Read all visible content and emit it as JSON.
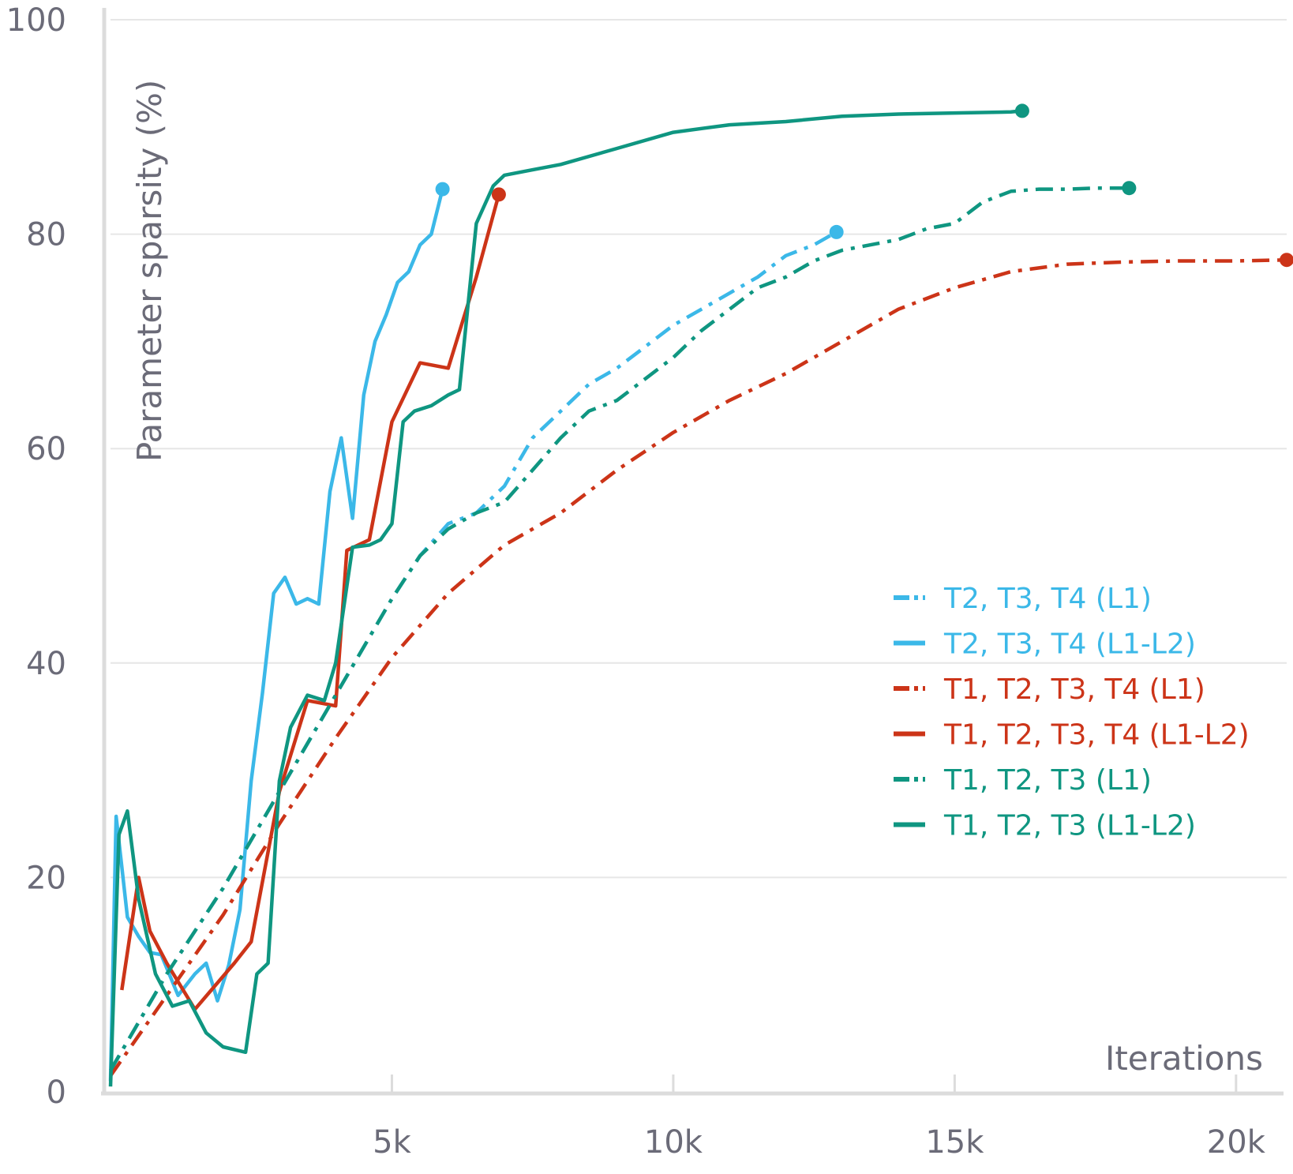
{
  "chart_data": {
    "type": "line",
    "title": "",
    "xlabel": "Iterations",
    "ylabel": "Parameter sparsity (%)",
    "xlim": [
      0,
      20900
    ],
    "ylim": [
      0,
      100
    ],
    "xticks": [
      {
        "value": 5000,
        "label": "5k"
      },
      {
        "value": 10000,
        "label": "10k"
      },
      {
        "value": 15000,
        "label": "15k"
      },
      {
        "value": 20000,
        "label": "20k"
      }
    ],
    "yticks": [
      {
        "value": 0,
        "label": "0"
      },
      {
        "value": 20,
        "label": "20"
      },
      {
        "value": 40,
        "label": "40"
      },
      {
        "value": 60,
        "label": "60"
      },
      {
        "value": 80,
        "label": "80"
      },
      {
        "value": 100,
        "label": "100"
      }
    ],
    "grid": true,
    "legend_position": "right-middle",
    "colors": {
      "blue": "#3bb8e8",
      "red": "#cc3418",
      "teal": "#0f9681",
      "grid": "#e6e6e6",
      "axis": "#dcdcdc",
      "text": "#6b6b78"
    },
    "series": [
      {
        "name": "T2, T3, T4 (L1)",
        "color": "#3bb8e8",
        "style": "dashdot",
        "points": [
          [
            0,
            2
          ],
          [
            1000,
            11
          ],
          [
            2000,
            19
          ],
          [
            3000,
            28
          ],
          [
            4000,
            37
          ],
          [
            5000,
            46
          ],
          [
            5500,
            50
          ],
          [
            6000,
            53
          ],
          [
            6500,
            54
          ],
          [
            7000,
            56.5
          ],
          [
            7500,
            61
          ],
          [
            8000,
            63.5
          ],
          [
            8500,
            66
          ],
          [
            9000,
            67.5
          ],
          [
            9500,
            69.5
          ],
          [
            10000,
            71.5
          ],
          [
            10500,
            73
          ],
          [
            11000,
            74.5
          ],
          [
            11500,
            76
          ],
          [
            12000,
            78
          ],
          [
            12500,
            79
          ],
          [
            12900,
            80.2
          ]
        ]
      },
      {
        "name": "T2, T3, T4 (L1-L2)",
        "color": "#3bb8e8",
        "style": "solid",
        "points": [
          [
            0,
            1
          ],
          [
            100,
            25.7
          ],
          [
            200,
            21
          ],
          [
            300,
            16.3
          ],
          [
            500,
            14.5
          ],
          [
            700,
            13
          ],
          [
            900,
            12.8
          ],
          [
            1200,
            9
          ],
          [
            1500,
            11
          ],
          [
            1700,
            12
          ],
          [
            1900,
            8.5
          ],
          [
            2100,
            11.8
          ],
          [
            2300,
            17
          ],
          [
            2500,
            29
          ],
          [
            2700,
            37.2
          ],
          [
            2900,
            46.5
          ],
          [
            3100,
            48
          ],
          [
            3300,
            45.5
          ],
          [
            3500,
            46
          ],
          [
            3700,
            45.5
          ],
          [
            3900,
            56
          ],
          [
            4100,
            61
          ],
          [
            4300,
            53.5
          ],
          [
            4500,
            65
          ],
          [
            4700,
            70
          ],
          [
            4900,
            72.5
          ],
          [
            5100,
            75.5
          ],
          [
            5300,
            76.5
          ],
          [
            5500,
            79
          ],
          [
            5700,
            80
          ],
          [
            5900,
            84.2
          ]
        ]
      },
      {
        "name": "T1, T2, T3, T4 (L1)",
        "color": "#cc3418",
        "style": "dashdot",
        "points": [
          [
            0,
            1.5
          ],
          [
            1000,
            9
          ],
          [
            2000,
            16.5
          ],
          [
            3000,
            25
          ],
          [
            4000,
            33
          ],
          [
            5000,
            40.5
          ],
          [
            6000,
            46.5
          ],
          [
            7000,
            51
          ],
          [
            8000,
            54
          ],
          [
            9000,
            58
          ],
          [
            10000,
            61.5
          ],
          [
            11000,
            64.5
          ],
          [
            12000,
            67
          ],
          [
            13000,
            70
          ],
          [
            14000,
            73
          ],
          [
            15000,
            75
          ],
          [
            16000,
            76.5
          ],
          [
            17000,
            77.2
          ],
          [
            18000,
            77.4
          ],
          [
            19000,
            77.5
          ],
          [
            20000,
            77.5
          ],
          [
            20900,
            77.6
          ]
        ]
      },
      {
        "name": "T1, T2, T3, T4 (L1-L2)",
        "color": "#cc3418",
        "style": "solid",
        "points": [
          [
            200,
            9.5
          ],
          [
            500,
            20
          ],
          [
            700,
            15
          ],
          [
            1000,
            12
          ],
          [
            1500,
            7.7
          ],
          [
            2200,
            12
          ],
          [
            2500,
            14
          ],
          [
            3000,
            28
          ],
          [
            3500,
            36.5
          ],
          [
            4000,
            36
          ],
          [
            4200,
            50.5
          ],
          [
            4600,
            51.5
          ],
          [
            5000,
            62.5
          ],
          [
            5500,
            68
          ],
          [
            6000,
            67.5
          ],
          [
            6500,
            76
          ],
          [
            6900,
            83.7
          ]
        ]
      },
      {
        "name": "T1, T2, T3 (L1)",
        "color": "#0f9681",
        "style": "dashdot",
        "points": [
          [
            0,
            2
          ],
          [
            1000,
            11
          ],
          [
            2000,
            19
          ],
          [
            3000,
            28
          ],
          [
            4000,
            37
          ],
          [
            5000,
            46
          ],
          [
            5500,
            50
          ],
          [
            6000,
            52.5
          ],
          [
            6500,
            54
          ],
          [
            7000,
            55
          ],
          [
            7500,
            58
          ],
          [
            8000,
            61
          ],
          [
            8500,
            63.5
          ],
          [
            9000,
            64.5
          ],
          [
            9500,
            66.5
          ],
          [
            10000,
            68.5
          ],
          [
            10500,
            71
          ],
          [
            11000,
            73
          ],
          [
            11500,
            75
          ],
          [
            12000,
            76
          ],
          [
            12500,
            77.5
          ],
          [
            13000,
            78.5
          ],
          [
            13500,
            79
          ],
          [
            14000,
            79.5
          ],
          [
            14500,
            80.5
          ],
          [
            15000,
            81
          ],
          [
            15500,
            83
          ],
          [
            16000,
            84
          ],
          [
            16500,
            84.2
          ],
          [
            17000,
            84.2
          ],
          [
            17500,
            84.3
          ],
          [
            18100,
            84.3
          ]
        ]
      },
      {
        "name": "T1, T2, T3 (L1-L2)",
        "color": "#0f9681",
        "style": "solid",
        "points": [
          [
            0,
            0.5
          ],
          [
            150,
            24
          ],
          [
            300,
            26.2
          ],
          [
            500,
            18
          ],
          [
            800,
            11
          ],
          [
            1100,
            8
          ],
          [
            1400,
            8.5
          ],
          [
            1700,
            5.5
          ],
          [
            2000,
            4.2
          ],
          [
            2400,
            3.7
          ],
          [
            2600,
            11
          ],
          [
            2800,
            12
          ],
          [
            3000,
            29
          ],
          [
            3200,
            34
          ],
          [
            3500,
            37
          ],
          [
            3800,
            36.5
          ],
          [
            4000,
            40
          ],
          [
            4300,
            50.8
          ],
          [
            4600,
            51
          ],
          [
            4800,
            51.5
          ],
          [
            5000,
            53
          ],
          [
            5200,
            62.5
          ],
          [
            5400,
            63.5
          ],
          [
            5700,
            64
          ],
          [
            6000,
            65
          ],
          [
            6200,
            65.5
          ],
          [
            6500,
            81
          ],
          [
            6800,
            84.5
          ],
          [
            7000,
            85.5
          ],
          [
            7500,
            86
          ],
          [
            8000,
            86.5
          ],
          [
            9000,
            88
          ],
          [
            10000,
            89.5
          ],
          [
            11000,
            90.2
          ],
          [
            12000,
            90.5
          ],
          [
            13000,
            91
          ],
          [
            14000,
            91.2
          ],
          [
            15000,
            91.3
          ],
          [
            16000,
            91.4
          ],
          [
            16200,
            91.5
          ]
        ]
      }
    ]
  }
}
